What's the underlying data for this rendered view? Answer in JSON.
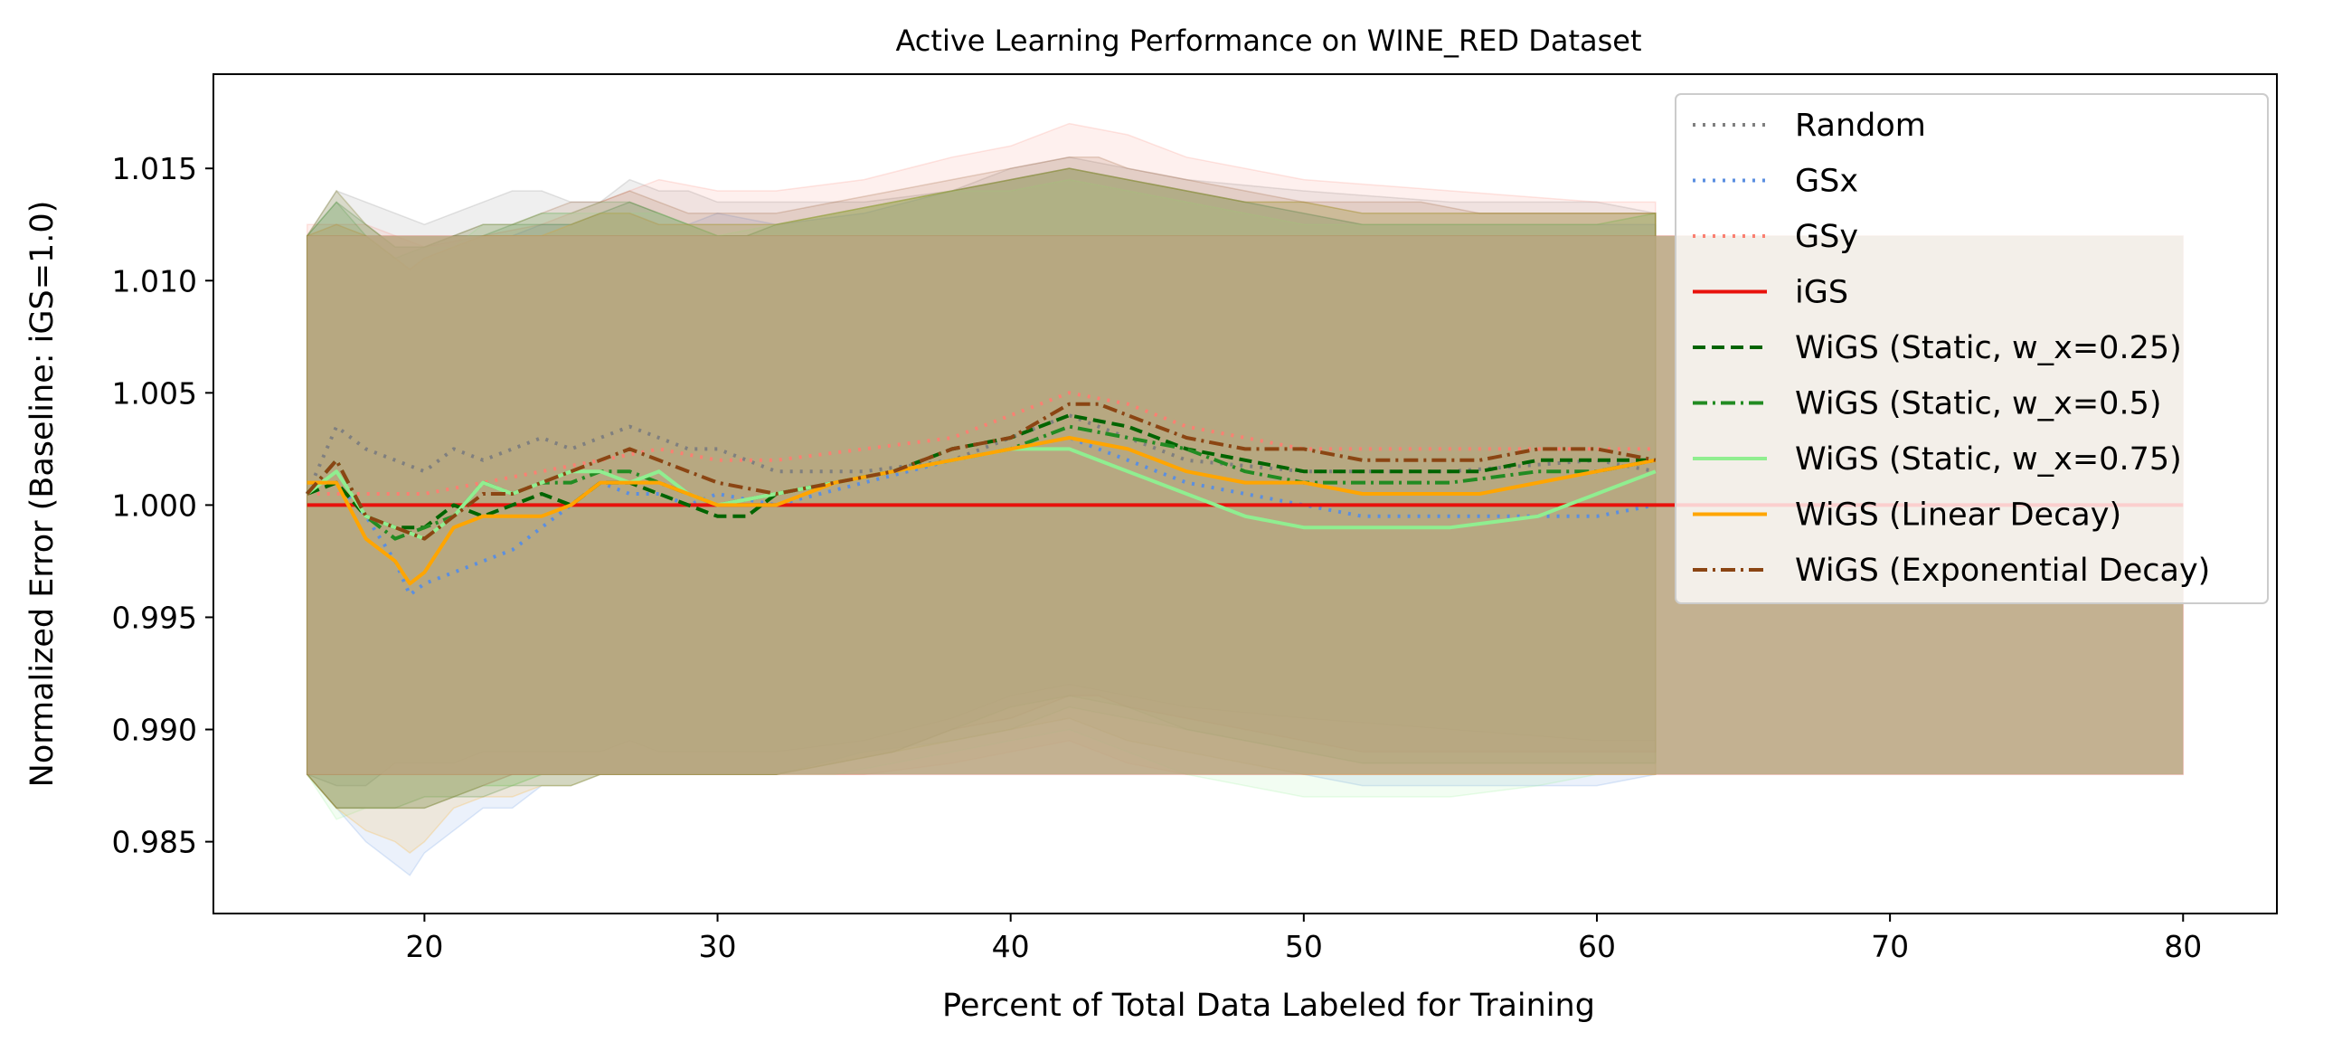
{
  "chart_data": {
    "type": "line",
    "title": "Active Learning Performance on WINE_RED Dataset",
    "xlabel": "Percent of Total Data Labeled for Training",
    "ylabel": "Normalized Error (Baseline: iGS=1.0)",
    "xlim": [
      12.8,
      83.2
    ],
    "ylim": [
      0.9818,
      1.0192
    ],
    "xticks": [
      20,
      30,
      40,
      50,
      60,
      70,
      80
    ],
    "xtick_labels": [
      "20",
      "30",
      "40",
      "50",
      "60",
      "70",
      "80"
    ],
    "yticks": [
      0.985,
      0.99,
      0.995,
      1.0,
      1.005,
      1.01,
      1.015
    ],
    "ytick_labels": [
      "0.985",
      "0.990",
      "0.995",
      "1.000",
      "1.005",
      "1.010",
      "1.015"
    ],
    "grid": false,
    "legend_position": "upper right",
    "series": [
      {
        "name": "Random",
        "color": "#7f7f7f",
        "dash": "dotted",
        "x": [
          16,
          17,
          18,
          19,
          20,
          21,
          22,
          23,
          24,
          25,
          26,
          27,
          28,
          29,
          30,
          32,
          35,
          38,
          40,
          42,
          44,
          46,
          50,
          55,
          60,
          62
        ],
        "y": [
          1.0005,
          1.0035,
          1.0025,
          1.002,
          1.0015,
          1.0025,
          1.002,
          1.0025,
          1.003,
          1.0025,
          1.003,
          1.0035,
          1.003,
          1.0025,
          1.0025,
          1.0015,
          1.0015,
          1.002,
          1.003,
          1.004,
          1.003,
          1.002,
          1.0015,
          1.0015,
          1.002,
          1.0015
        ],
        "band_upper": [
          1.012,
          1.014,
          1.0135,
          1.013,
          1.0125,
          1.013,
          1.0135,
          1.014,
          1.014,
          1.0135,
          1.0135,
          1.0145,
          1.014,
          1.014,
          1.0135,
          1.0135,
          1.0135,
          1.014,
          1.015,
          1.0155,
          1.015,
          1.0145,
          1.014,
          1.0135,
          1.0135,
          1.013
        ],
        "band_lower": [
          0.988,
          0.9875,
          0.9875,
          0.9885,
          0.9885,
          0.9885,
          0.989,
          0.989,
          0.989,
          0.989,
          0.989,
          0.9895,
          0.989,
          0.989,
          0.989,
          0.989,
          0.9895,
          0.9905,
          0.9915,
          0.992,
          0.9915,
          0.991,
          0.9905,
          0.99,
          0.9895,
          0.9895
        ]
      },
      {
        "name": "GSx",
        "color": "#5b8fe0",
        "dash": "dotted",
        "x": [
          16,
          17,
          18,
          19,
          19.5,
          20,
          21,
          22,
          23,
          24,
          25,
          26,
          27,
          28,
          29,
          30,
          32,
          35,
          38,
          40,
          42,
          44,
          46,
          48,
          50,
          52,
          55,
          58,
          60,
          62
        ],
        "y": [
          1.0005,
          1.001,
          0.9995,
          0.9975,
          0.996,
          0.9965,
          0.997,
          0.9975,
          0.998,
          0.999,
          1.0,
          1.001,
          1.0005,
          1.0005,
          1.0,
          1.0005,
          1.0,
          1.001,
          1.002,
          1.0025,
          1.003,
          1.002,
          1.001,
          1.0005,
          1.0,
          0.9995,
          0.9995,
          0.9995,
          0.9995,
          1.0
        ],
        "band_upper": [
          1.012,
          1.0125,
          1.012,
          1.011,
          1.0105,
          1.011,
          1.0115,
          1.012,
          1.012,
          1.0125,
          1.0125,
          1.013,
          1.013,
          1.0125,
          1.0125,
          1.013,
          1.0125,
          1.013,
          1.014,
          1.0145,
          1.015,
          1.0145,
          1.014,
          1.0135,
          1.013,
          1.0125,
          1.0125,
          1.0125,
          1.0125,
          1.0125
        ],
        "band_lower": [
          0.988,
          0.9865,
          0.985,
          0.984,
          0.9835,
          0.9845,
          0.9855,
          0.9865,
          0.9865,
          0.9875,
          0.9875,
          0.988,
          0.988,
          0.988,
          0.988,
          0.988,
          0.988,
          0.989,
          0.9895,
          0.99,
          0.9905,
          0.9895,
          0.989,
          0.9885,
          0.988,
          0.9875,
          0.9875,
          0.9875,
          0.9875,
          0.988
        ]
      },
      {
        "name": "GSy",
        "color": "#fa8072",
        "dash": "dotted",
        "x": [
          16,
          18,
          20,
          22,
          24,
          26,
          28,
          30,
          32,
          35,
          38,
          40,
          42,
          44,
          46,
          50,
          55,
          60,
          62
        ],
        "y": [
          1.0005,
          1.0005,
          1.0005,
          1.001,
          1.0015,
          1.002,
          1.0025,
          1.002,
          1.002,
          1.0025,
          1.003,
          1.004,
          1.005,
          1.0045,
          1.0035,
          1.0025,
          1.0025,
          1.0025,
          1.0025
        ],
        "band_upper": [
          1.0125,
          1.0125,
          1.0115,
          1.012,
          1.0125,
          1.0135,
          1.0145,
          1.014,
          1.014,
          1.0145,
          1.0155,
          1.016,
          1.017,
          1.0165,
          1.0155,
          1.0145,
          1.014,
          1.0135,
          1.0135
        ],
        "band_lower": [
          0.988,
          0.988,
          0.988,
          0.988,
          0.988,
          0.988,
          0.988,
          0.988,
          0.988,
          0.988,
          0.9885,
          0.989,
          0.9895,
          0.9885,
          0.988,
          0.988,
          0.988,
          0.988,
          0.988
        ]
      },
      {
        "name": "iGS",
        "color": "#e8120c",
        "dash": "solid",
        "x": [
          16,
          80
        ],
        "y": [
          1.0,
          1.0
        ],
        "band_upper": [
          1.012,
          1.012
        ],
        "band_lower": [
          0.988,
          0.988
        ]
      },
      {
        "name": "WiGS (Static, w_x=0.25)",
        "color": "#006400",
        "dash": "dashed",
        "x": [
          16,
          17,
          18,
          19,
          20,
          21,
          22,
          23,
          24,
          25,
          26,
          27,
          28,
          29,
          30,
          31,
          32,
          34,
          36,
          38,
          40,
          42,
          44,
          46,
          48,
          50,
          52,
          54,
          56,
          58,
          60,
          62
        ],
        "y": [
          1.0005,
          1.001,
          0.9995,
          0.999,
          0.999,
          1.0,
          0.9995,
          1.0,
          1.0005,
          1.0,
          1.001,
          1.001,
          1.0005,
          1.0,
          0.9995,
          0.9995,
          1.0005,
          1.001,
          1.0015,
          1.0025,
          1.003,
          1.004,
          1.0035,
          1.0025,
          1.002,
          1.0015,
          1.0015,
          1.0015,
          1.0015,
          1.002,
          1.002,
          1.002
        ],
        "band_upper": [
          1.012,
          1.0135,
          1.0125,
          1.0115,
          1.0115,
          1.012,
          1.012,
          1.0125,
          1.0125,
          1.0125,
          1.013,
          1.0135,
          1.013,
          1.0125,
          1.012,
          1.012,
          1.0125,
          1.013,
          1.0135,
          1.014,
          1.0145,
          1.015,
          1.0145,
          1.014,
          1.0135,
          1.0135,
          1.013,
          1.013,
          1.013,
          1.013,
          1.013,
          1.013
        ],
        "band_lower": [
          0.988,
          0.9865,
          0.9865,
          0.9865,
          0.9865,
          0.987,
          0.987,
          0.9875,
          0.9875,
          0.9875,
          0.988,
          0.988,
          0.988,
          0.988,
          0.988,
          0.988,
          0.988,
          0.9885,
          0.989,
          0.99,
          0.991,
          0.9915,
          0.991,
          0.99,
          0.9895,
          0.989,
          0.9885,
          0.9885,
          0.9885,
          0.9885,
          0.9885,
          0.9885
        ]
      },
      {
        "name": "WiGS (Static, w_x=0.5)",
        "color": "#228b22",
        "dash": "dashdot",
        "x": [
          16,
          17,
          18,
          19,
          20,
          21,
          22,
          23,
          24,
          25,
          26,
          27,
          28,
          29,
          30,
          32,
          34,
          36,
          38,
          40,
          42,
          44,
          46,
          48,
          50,
          52,
          55,
          58,
          60,
          62
        ],
        "y": [
          1.0005,
          1.002,
          0.9995,
          0.9985,
          0.999,
          0.9995,
          1.001,
          1.0005,
          1.001,
          1.001,
          1.0015,
          1.0015,
          1.001,
          1.0005,
          1.0,
          1.0005,
          1.001,
          1.0015,
          1.002,
          1.0025,
          1.0035,
          1.003,
          1.0025,
          1.0015,
          1.001,
          1.001,
          1.001,
          1.0015,
          1.0015,
          1.002
        ],
        "band_upper": [
          1.012,
          1.0135,
          1.012,
          1.011,
          1.0115,
          1.012,
          1.0125,
          1.0125,
          1.013,
          1.013,
          1.0135,
          1.0135,
          1.013,
          1.0125,
          1.0125,
          1.0125,
          1.013,
          1.0135,
          1.014,
          1.0145,
          1.015,
          1.0145,
          1.014,
          1.0135,
          1.013,
          1.0125,
          1.0125,
          1.0125,
          1.0125,
          1.013
        ],
        "band_lower": [
          0.988,
          0.9865,
          0.9865,
          0.9865,
          0.987,
          0.987,
          0.9875,
          0.9875,
          0.988,
          0.988,
          0.988,
          0.988,
          0.988,
          0.988,
          0.988,
          0.988,
          0.9885,
          0.989,
          0.9895,
          0.99,
          0.991,
          0.9905,
          0.99,
          0.9895,
          0.989,
          0.9885,
          0.9885,
          0.9885,
          0.9885,
          0.9885
        ]
      },
      {
        "name": "WiGS (Static, w_x=0.75)",
        "color": "#90ee90",
        "dash": "solid",
        "x": [
          16,
          17,
          18,
          19,
          20,
          21,
          22,
          23,
          24,
          25,
          26,
          27,
          28,
          29,
          30,
          32,
          34,
          36,
          38,
          40,
          42,
          44,
          46,
          48,
          50,
          52,
          55,
          58,
          60,
          62
        ],
        "y": [
          1.0005,
          1.0015,
          0.9995,
          0.999,
          0.9985,
          0.9995,
          1.001,
          1.0005,
          1.001,
          1.0015,
          1.0015,
          1.001,
          1.0015,
          1.0005,
          1.0,
          1.0005,
          1.001,
          1.0015,
          1.002,
          1.0025,
          1.0025,
          1.0015,
          1.0005,
          0.9995,
          0.999,
          0.999,
          0.999,
          0.9995,
          1.0005,
          1.0015
        ],
        "band_upper": [
          1.012,
          1.014,
          1.0125,
          1.0115,
          1.0115,
          1.0115,
          1.0125,
          1.0125,
          1.013,
          1.013,
          1.013,
          1.013,
          1.013,
          1.0125,
          1.012,
          1.0125,
          1.013,
          1.0135,
          1.014,
          1.014,
          1.0145,
          1.014,
          1.0135,
          1.013,
          1.0125,
          1.0125,
          1.0125,
          1.0125,
          1.0125,
          1.013
        ],
        "band_lower": [
          0.988,
          0.986,
          0.9865,
          0.9865,
          0.9865,
          0.987,
          0.9875,
          0.9875,
          0.988,
          0.988,
          0.988,
          0.988,
          0.988,
          0.988,
          0.988,
          0.988,
          0.988,
          0.9885,
          0.989,
          0.9895,
          0.99,
          0.989,
          0.988,
          0.9875,
          0.987,
          0.987,
          0.987,
          0.9875,
          0.988,
          0.988
        ]
      },
      {
        "name": "WiGS (Linear Decay)",
        "color": "#ffa500",
        "dash": "solid",
        "x": [
          16,
          17,
          18,
          19,
          19.5,
          20,
          21,
          22,
          23,
          24,
          25,
          26,
          27,
          28,
          29,
          30,
          32,
          34,
          36,
          38,
          40,
          42,
          44,
          46,
          48,
          50,
          52,
          54,
          56,
          58,
          60,
          62
        ],
        "y": [
          1.001,
          1.001,
          0.9985,
          0.9975,
          0.9965,
          0.997,
          0.999,
          0.9995,
          0.9995,
          0.9995,
          1.0,
          1.001,
          1.001,
          1.001,
          1.0005,
          1.0,
          1.0,
          1.001,
          1.0015,
          1.002,
          1.0025,
          1.003,
          1.0025,
          1.0015,
          1.001,
          1.001,
          1.0005,
          1.0005,
          1.0005,
          1.001,
          1.0015,
          1.002
        ],
        "band_upper": [
          1.012,
          1.0125,
          1.012,
          1.011,
          1.0105,
          1.011,
          1.0115,
          1.012,
          1.012,
          1.012,
          1.0125,
          1.013,
          1.013,
          1.0125,
          1.0125,
          1.0125,
          1.0125,
          1.013,
          1.0135,
          1.014,
          1.0145,
          1.015,
          1.0145,
          1.014,
          1.0135,
          1.0135,
          1.013,
          1.013,
          1.013,
          1.013,
          1.013,
          1.013
        ],
        "band_lower": [
          0.988,
          0.9865,
          0.9855,
          0.985,
          0.9845,
          0.985,
          0.9865,
          0.987,
          0.987,
          0.9875,
          0.9875,
          0.988,
          0.988,
          0.988,
          0.988,
          0.988,
          0.988,
          0.9885,
          0.989,
          0.9895,
          0.99,
          0.9905,
          0.9895,
          0.989,
          0.9885,
          0.988,
          0.988,
          0.988,
          0.988,
          0.988,
          0.988,
          0.988
        ]
      },
      {
        "name": "WiGS (Exponential Decay)",
        "color": "#8b4513",
        "dash": "dashdot",
        "x": [
          16,
          17,
          18,
          19,
          20,
          21,
          22,
          23,
          24,
          25,
          26,
          27,
          28,
          29,
          30,
          32,
          34,
          36,
          38,
          40,
          42,
          43,
          44,
          46,
          48,
          50,
          52,
          54,
          56,
          58,
          60,
          62
        ],
        "y": [
          1.0005,
          1.002,
          0.9995,
          0.999,
          0.9985,
          0.9995,
          1.0005,
          1.0005,
          1.001,
          1.0015,
          1.002,
          1.0025,
          1.002,
          1.0015,
          1.001,
          1.0005,
          1.001,
          1.0015,
          1.0025,
          1.003,
          1.0045,
          1.0045,
          1.004,
          1.003,
          1.0025,
          1.0025,
          1.002,
          1.002,
          1.002,
          1.0025,
          1.0025,
          1.002
        ],
        "band_upper": [
          1.012,
          1.014,
          1.0125,
          1.0115,
          1.0115,
          1.012,
          1.0125,
          1.0125,
          1.013,
          1.0135,
          1.0135,
          1.014,
          1.0135,
          1.013,
          1.013,
          1.013,
          1.0135,
          1.014,
          1.0145,
          1.015,
          1.0155,
          1.0155,
          1.015,
          1.0145,
          1.014,
          1.0135,
          1.0135,
          1.0135,
          1.013,
          1.013,
          1.013,
          1.013
        ],
        "band_lower": [
          0.988,
          0.9865,
          0.9865,
          0.9865,
          0.9865,
          0.987,
          0.9875,
          0.988,
          0.988,
          0.988,
          0.988,
          0.988,
          0.988,
          0.988,
          0.988,
          0.988,
          0.9885,
          0.989,
          0.99,
          0.9905,
          0.9915,
          0.9915,
          0.991,
          0.9905,
          0.99,
          0.9895,
          0.989,
          0.989,
          0.989,
          0.989,
          0.989,
          0.989
        ]
      }
    ],
    "baseline_band": {
      "x": [
        16,
        80
      ],
      "upper": [
        1.012,
        1.012
      ],
      "lower": [
        0.988,
        0.988
      ],
      "color": "#b8a882"
    }
  }
}
